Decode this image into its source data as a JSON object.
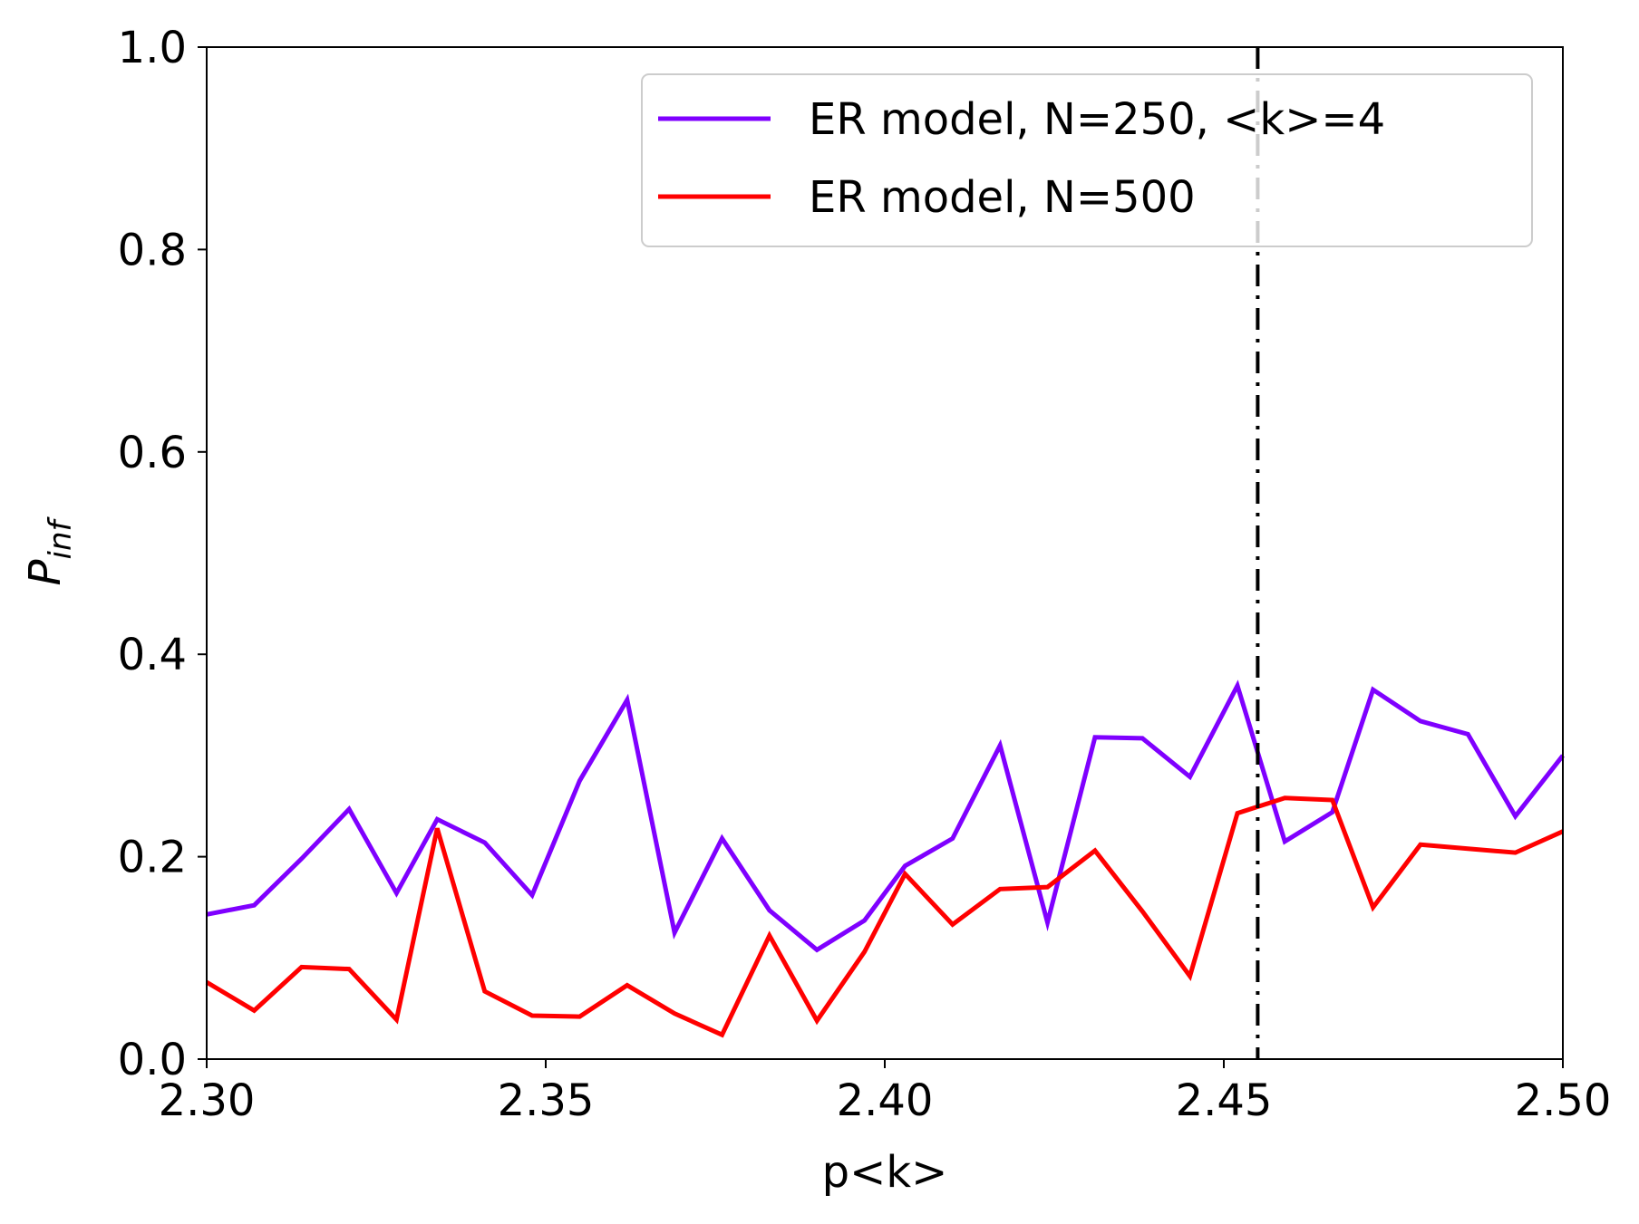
{
  "chart_data": {
    "type": "line",
    "title": "",
    "xlabel": "p<k>",
    "ylabel": "P",
    "ylabel_subscript": "inf",
    "xlim": [
      2.3,
      2.5
    ],
    "ylim": [
      0.0,
      1.0
    ],
    "xticks": [
      "2.30",
      "2.35",
      "2.40",
      "2.45",
      "2.50"
    ],
    "yticks": [
      "0.0",
      "0.2",
      "0.4",
      "0.6",
      "0.8",
      "1.0"
    ],
    "grid": false,
    "legend_position": "top-right",
    "reference_line": {
      "x": 2.455,
      "style": "dash-dot",
      "color": "#000000"
    },
    "x": [
      2.3,
      2.307,
      2.314,
      2.321,
      2.328,
      2.334,
      2.341,
      2.348,
      2.355,
      2.362,
      2.369,
      2.376,
      2.383,
      2.39,
      2.397,
      2.403,
      2.41,
      2.417,
      2.424,
      2.431,
      2.438,
      2.445,
      2.452,
      2.459,
      2.466,
      2.472,
      2.479,
      2.486,
      2.493,
      2.5
    ],
    "series": [
      {
        "name": "ER model, N=250, <k>=4",
        "color": "#7f00ff",
        "values": [
          0.143,
          0.152,
          0.198,
          0.247,
          0.164,
          0.237,
          0.214,
          0.162,
          0.275,
          0.355,
          0.125,
          0.218,
          0.147,
          0.108,
          0.137,
          0.191,
          0.218,
          0.31,
          0.135,
          0.318,
          0.317,
          0.279,
          0.369,
          0.215,
          0.244,
          0.365,
          0.334,
          0.321,
          0.24,
          0.3
        ]
      },
      {
        "name": "ER model, N=500",
        "color": "#ff0000",
        "values": [
          0.076,
          0.048,
          0.091,
          0.089,
          0.039,
          0.228,
          0.067,
          0.043,
          0.042,
          0.073,
          0.045,
          0.024,
          0.122,
          0.038,
          0.106,
          0.183,
          0.133,
          0.168,
          0.17,
          0.206,
          0.146,
          0.082,
          0.243,
          0.258,
          0.256,
          0.15,
          0.212,
          0.208,
          0.204,
          0.225
        ]
      }
    ]
  }
}
